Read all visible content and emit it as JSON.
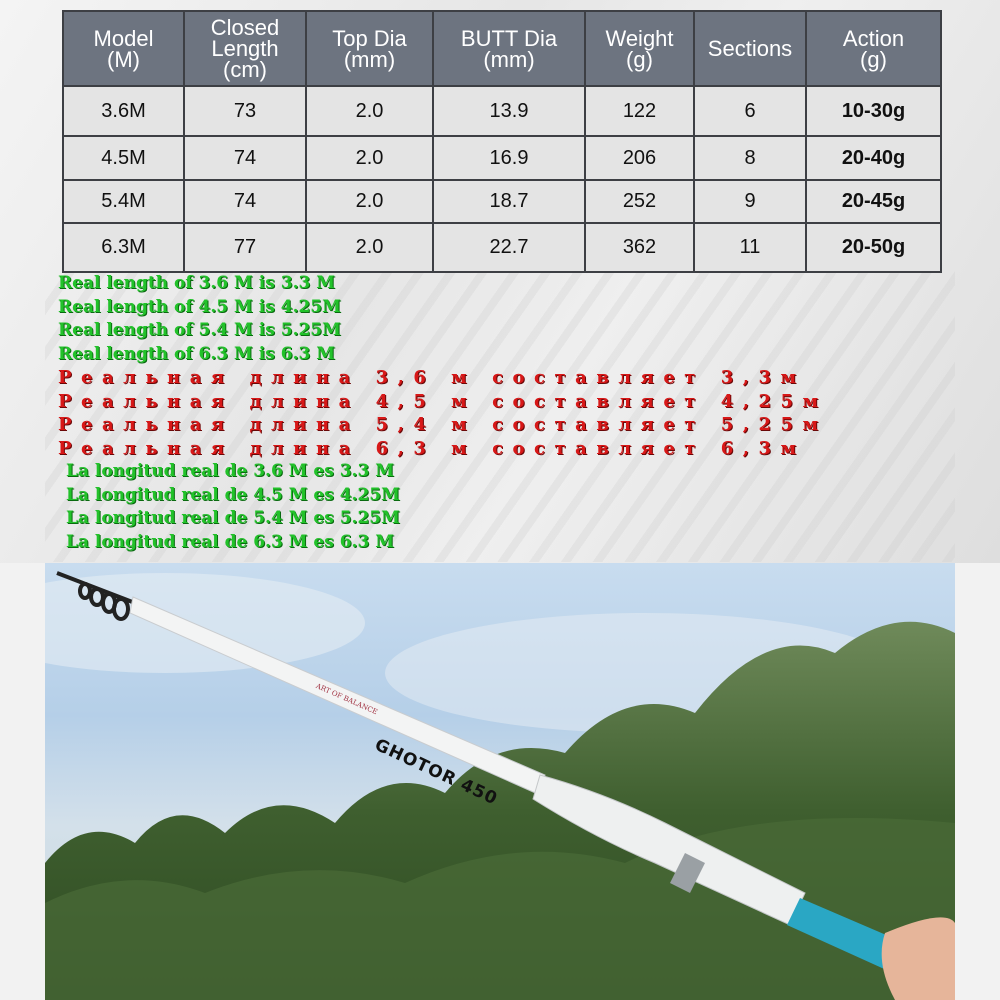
{
  "spec_table": {
    "headers": [
      [
        "Model",
        "(M)"
      ],
      [
        "Closed",
        "Length",
        "(cm)"
      ],
      [
        "Top Dia",
        "(mm)"
      ],
      [
        "BUTT Dia",
        "(mm)"
      ],
      [
        "Weight",
        "(g)"
      ],
      [
        "Sections"
      ],
      [
        "Action",
        "(g)"
      ]
    ],
    "rows": [
      [
        "3.6M",
        "73",
        "2.0",
        "13.9",
        "122",
        "6",
        "10-30g"
      ],
      [
        "4.5M",
        "74",
        "2.0",
        "16.9",
        "206",
        "8",
        "20-40g"
      ],
      [
        "5.4M",
        "74",
        "2.0",
        "18.7",
        "252",
        "9",
        "20-45g"
      ],
      [
        "6.3M",
        "77",
        "2.0",
        "22.7",
        "362",
        "11",
        "20-50g"
      ]
    ]
  },
  "notes": {
    "english": [
      "Real length of 3.6 M is 3.3 M",
      "Real length of 4.5 M is 4.25M",
      "Real length of 5.4 M is 5.25M",
      "Real length of 6.3 M is 6.3 M"
    ],
    "russian": [
      "Реальная длина 3,6 м составляет 3,3м",
      "Реальная длина 4,5 м составляет 4,25м",
      "Реальная длина 5,4 м составляет 5,25м",
      "Реальная длина 6,3 м составляет 6,3м"
    ],
    "spanish": [
      "La longitud real de 3.6 M es 3.3 M",
      "La longitud real de 4.5 M es 4.25M",
      "La longitud real de 5.4 M es 5.25M",
      "La longitud real de 6.3 M es 6.3 M"
    ]
  },
  "photo": {
    "rod_model": "GHOTOR 450",
    "rod_brand": "ART OF BALANCE"
  },
  "colors": {
    "header_bg": "#6d7480",
    "english_text": "#22c22a",
    "russian_text": "#d81818",
    "spanish_text": "#22c22a"
  }
}
